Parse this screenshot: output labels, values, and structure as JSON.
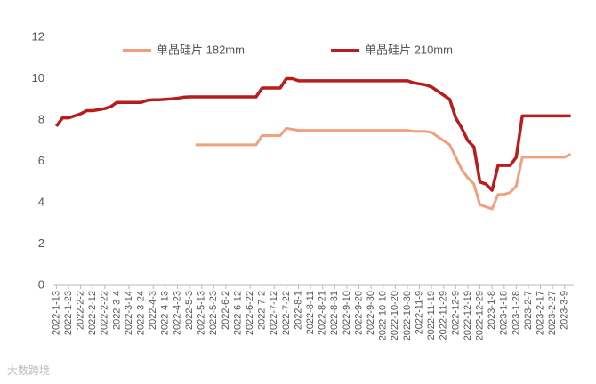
{
  "chart_data": {
    "type": "line",
    "categories": [
      "2022-1-13",
      null,
      "2022-1-23",
      null,
      "2022-2-2",
      null,
      "2022-2-12",
      null,
      "2022-2-22",
      null,
      "2022-3-4",
      null,
      "2022-3-14",
      null,
      "2022-3-24",
      null,
      "2022-4-3",
      null,
      "2022-4-13",
      null,
      "2022-4-23",
      null,
      "2022-5-3",
      null,
      "2022-5-13",
      null,
      "2022-5-23",
      null,
      "2022-6-2",
      null,
      "2022-6-12",
      null,
      "2022-6-22",
      null,
      "2022-7-2",
      null,
      "2022-7-12",
      null,
      "2022-7-22",
      null,
      "2022-8-1",
      null,
      "2022-8-11",
      null,
      "2022-8-21",
      null,
      "2022-8-31",
      null,
      "2022-9-10",
      null,
      "2022-9-20",
      null,
      "2022-9-30",
      null,
      "2022-10-10",
      null,
      "2022-10-20",
      null,
      "2022-10-30",
      null,
      "2022-11-9",
      null,
      "2022-11-19",
      null,
      "2022-11-29",
      null,
      "2022-12-9",
      null,
      "2022-12-19",
      null,
      "2022-12-29",
      null,
      "2023-1-8",
      null,
      "2023-1-18",
      null,
      "2023-1-28",
      null,
      "2023-2-7",
      null,
      "2023-2-17",
      null,
      "2023-2-27",
      null,
      "2023-3-9",
      null
    ],
    "series": [
      {
        "name": "单晶硅片 182mm",
        "color": "#f0a07c",
        "values": [
          null,
          null,
          null,
          null,
          null,
          null,
          null,
          null,
          null,
          null,
          null,
          null,
          null,
          null,
          null,
          null,
          null,
          null,
          null,
          null,
          null,
          null,
          null,
          6.8,
          6.8,
          6.8,
          6.8,
          6.8,
          6.8,
          6.8,
          6.8,
          6.8,
          6.8,
          6.8,
          7.25,
          7.25,
          7.25,
          7.25,
          7.6,
          7.55,
          7.5,
          7.5,
          7.5,
          7.5,
          7.5,
          7.5,
          7.5,
          7.5,
          7.5,
          7.5,
          7.5,
          7.5,
          7.5,
          7.5,
          7.5,
          7.5,
          7.5,
          7.5,
          7.5,
          7.45,
          7.45,
          7.45,
          7.4,
          7.2,
          7.0,
          6.8,
          6.2,
          5.6,
          5.2,
          4.9,
          3.9,
          3.8,
          3.7,
          4.4,
          4.4,
          4.5,
          4.8,
          6.2,
          6.2,
          6.2,
          6.2,
          6.2,
          6.2,
          6.2,
          6.2,
          6.35
        ]
      },
      {
        "name": "单晶硅片 210mm",
        "color": "#b81c1c",
        "values": [
          7.7,
          8.1,
          8.1,
          8.2,
          8.3,
          8.45,
          8.45,
          8.5,
          8.55,
          8.65,
          8.85,
          8.85,
          8.85,
          8.85,
          8.85,
          8.95,
          8.98,
          8.98,
          9.0,
          9.02,
          9.05,
          9.1,
          9.12,
          9.12,
          9.12,
          9.12,
          9.12,
          9.12,
          9.12,
          9.12,
          9.12,
          9.12,
          9.12,
          9.12,
          9.55,
          9.55,
          9.55,
          9.55,
          10.0,
          10.0,
          9.9,
          9.9,
          9.9,
          9.9,
          9.9,
          9.9,
          9.9,
          9.9,
          9.9,
          9.9,
          9.9,
          9.9,
          9.9,
          9.9,
          9.9,
          9.9,
          9.9,
          9.9,
          9.9,
          9.8,
          9.75,
          9.7,
          9.6,
          9.4,
          9.2,
          9.0,
          8.1,
          7.6,
          7.0,
          6.7,
          5.0,
          4.9,
          4.6,
          5.8,
          5.8,
          5.8,
          6.2,
          8.2,
          8.2,
          8.2,
          8.2,
          8.2,
          8.2,
          8.2,
          8.2,
          8.2
        ]
      }
    ],
    "ylim": [
      0,
      12
    ],
    "yticks": [
      0,
      2,
      4,
      6,
      8,
      10,
      12
    ],
    "grid": false,
    "legend": "top",
    "watermark": "大数跨境"
  }
}
